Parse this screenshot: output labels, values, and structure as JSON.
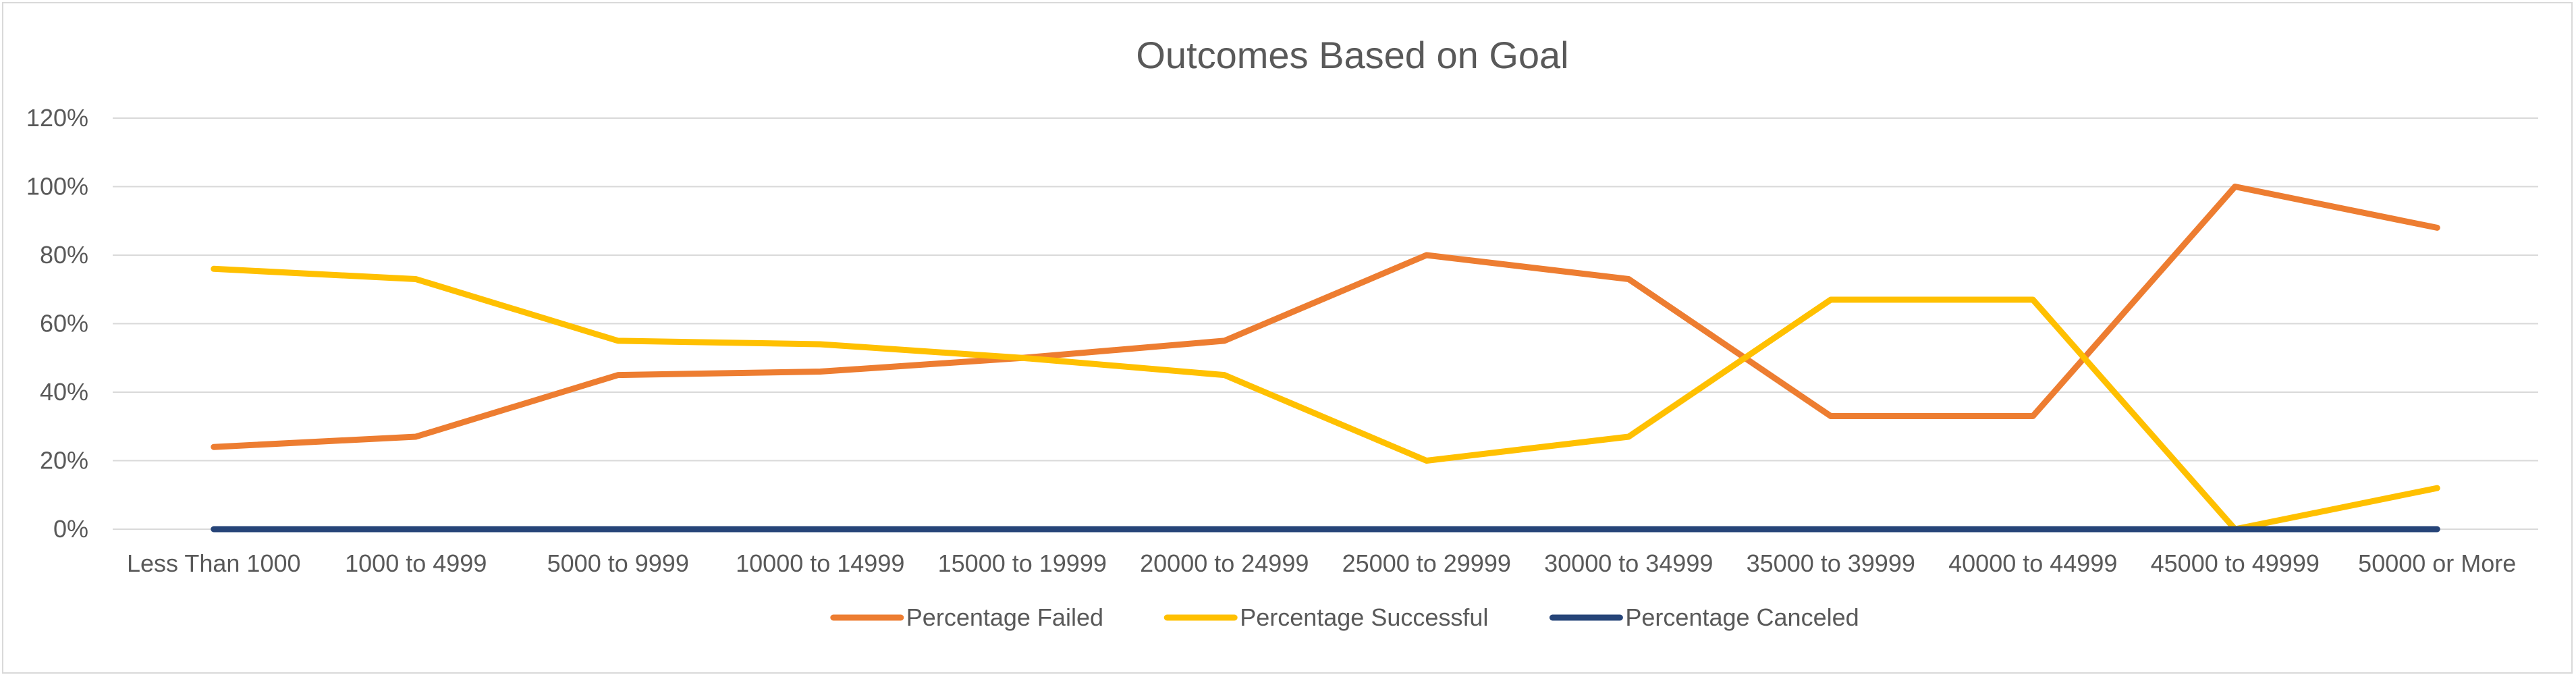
{
  "chart_data": {
    "type": "line",
    "title": "Outcomes Based on Goal",
    "xlabel": "",
    "ylabel": "",
    "categories": [
      "Less Than 1000",
      "1000 to 4999",
      "5000 to 9999",
      "10000 to 14999",
      "15000 to 19999",
      "20000 to 24999",
      "25000 to 29999",
      "30000 to 34999",
      "35000 to 39999",
      "40000 to 44999",
      "45000 to 49999",
      "50000 or More"
    ],
    "ylim": [
      0,
      120
    ],
    "yticks": [
      0,
      20,
      40,
      60,
      80,
      100,
      120
    ],
    "ytick_labels": [
      "0%",
      "20%",
      "40%",
      "60%",
      "80%",
      "100%",
      "120%"
    ],
    "grid": true,
    "legend_position": "bottom",
    "series": [
      {
        "name": "Percentage Failed",
        "color": "#ED7D31",
        "values": [
          24,
          27,
          45,
          46,
          50,
          55,
          80,
          73,
          33,
          33,
          100,
          88
        ]
      },
      {
        "name": "Percentage Successful",
        "color": "#FFC000",
        "values": [
          76,
          73,
          55,
          54,
          50,
          45,
          20,
          27,
          67,
          67,
          0,
          12
        ]
      },
      {
        "name": "Percentage Canceled",
        "color": "#264478",
        "values": [
          0,
          0,
          0,
          0,
          0,
          0,
          0,
          0,
          0,
          0,
          0,
          0
        ]
      }
    ]
  }
}
